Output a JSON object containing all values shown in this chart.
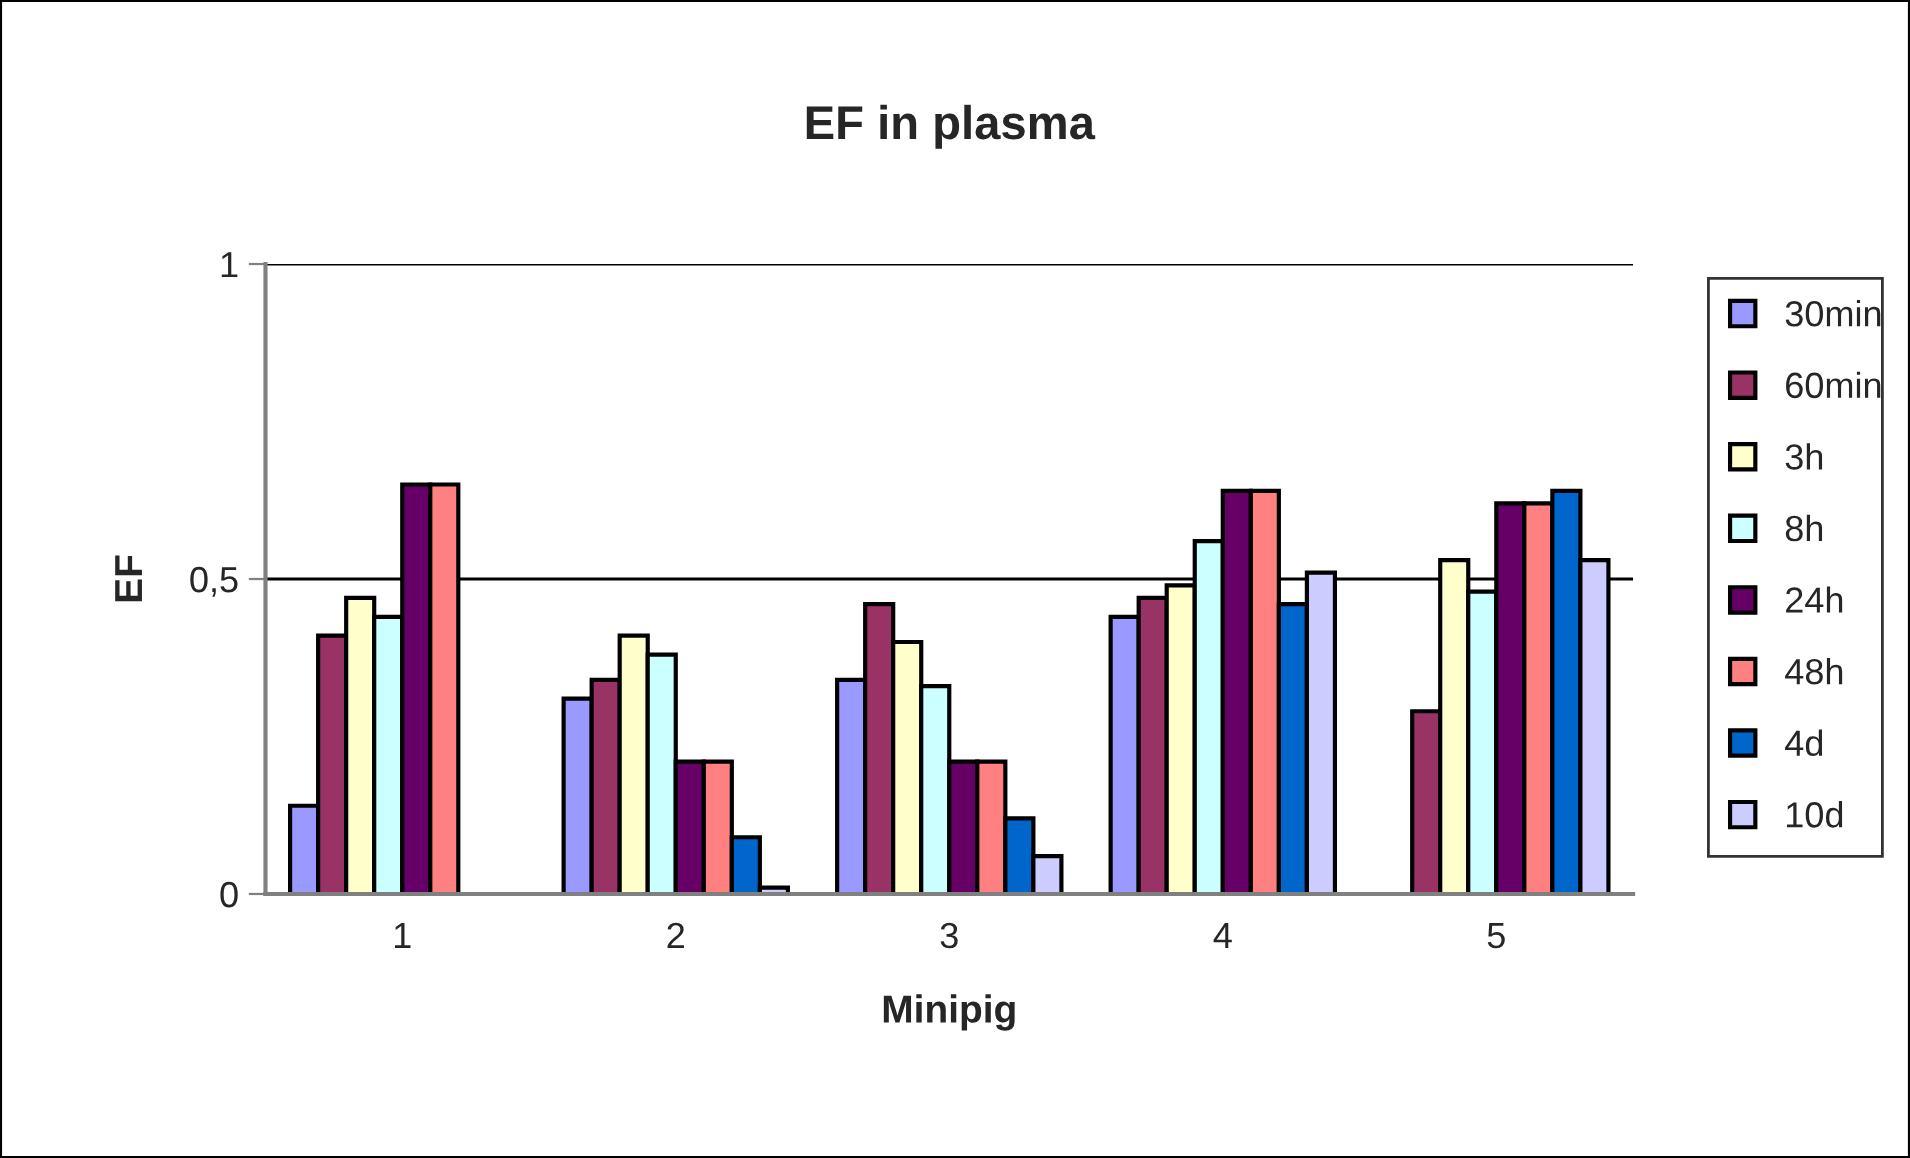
{
  "chart_data": {
    "type": "bar",
    "title": "EF in plasma",
    "xlabel": "Minipig",
    "ylabel": "EF",
    "categories": [
      "1",
      "2",
      "3",
      "4",
      "5"
    ],
    "series": [
      {
        "name": "30min",
        "color": "#9999ff",
        "values": [
          0.14,
          0.31,
          0.34,
          0.44,
          null
        ]
      },
      {
        "name": "60min",
        "color": "#993366",
        "values": [
          0.41,
          0.34,
          0.46,
          0.47,
          0.29
        ]
      },
      {
        "name": "3h",
        "color": "#ffffcc",
        "values": [
          0.47,
          0.41,
          0.4,
          0.49,
          0.53
        ]
      },
      {
        "name": "8h",
        "color": "#ccffff",
        "values": [
          0.44,
          0.38,
          0.33,
          0.56,
          0.48
        ]
      },
      {
        "name": "24h",
        "color": "#660066",
        "values": [
          0.65,
          0.21,
          0.21,
          0.64,
          0.62
        ]
      },
      {
        "name": "48h",
        "color": "#ff8080",
        "values": [
          0.65,
          0.21,
          0.21,
          0.64,
          0.62
        ]
      },
      {
        "name": "4d",
        "color": "#0066cc",
        "values": [
          null,
          0.09,
          0.12,
          0.46,
          0.64
        ]
      },
      {
        "name": "10d",
        "color": "#ccccff",
        "values": [
          null,
          0.01,
          0.06,
          0.51,
          0.53
        ]
      }
    ],
    "ylim": [
      0,
      1
    ],
    "yticks": [
      0,
      {
        "value": 0.5,
        "label": "0,5"
      },
      1
    ],
    "grid": "y",
    "legend": "right"
  }
}
